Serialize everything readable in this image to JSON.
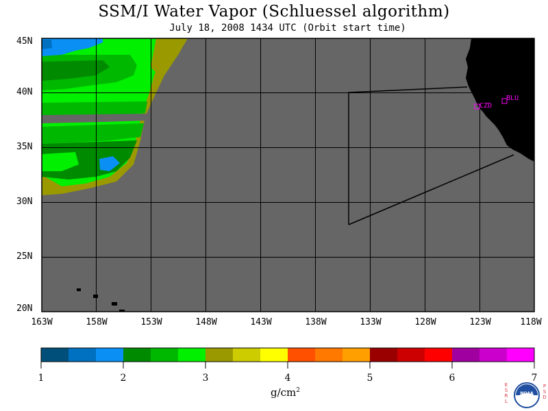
{
  "title": "SSM/I Water Vapor (Schluessel algorithm)",
  "subtitle": "July 18, 2008  1434 UTC  (Orbit start time)",
  "map": {
    "lat_labels": [
      "45N",
      "40N",
      "35N",
      "30N",
      "25N",
      "20N"
    ],
    "lon_labels": [
      "163W",
      "158W",
      "153W",
      "148W",
      "143W",
      "138W",
      "133W",
      "128W",
      "123W",
      "118W"
    ],
    "stations": [
      {
        "code": "CZD",
        "color": "#ff00ff"
      },
      {
        "code": "BLU",
        "color": "#ff00ff"
      }
    ],
    "colors": {
      "no_data": "#666666",
      "land": "#000000",
      "grid": "#000000",
      "station": "#ff00ff"
    }
  },
  "colorbar": {
    "ticks": [
      "1",
      "2",
      "3",
      "4",
      "5",
      "6",
      "7"
    ],
    "colors": [
      "#004f7a",
      "#0070c0",
      "#0a8ff5",
      "#008a00",
      "#00b800",
      "#00f000",
      "#9a9a00",
      "#cccc00",
      "#ffff00",
      "#ff5000",
      "#ff7800",
      "#ffa000",
      "#9a0000",
      "#cc0000",
      "#ff0000",
      "#a000a0",
      "#cc00cc",
      "#ff00ff"
    ],
    "units_base": "g/cm",
    "units_exp": "2"
  },
  "logo": {
    "left_text": "ESRL",
    "right_text": "PSD",
    "center_text": "NOAA"
  }
}
